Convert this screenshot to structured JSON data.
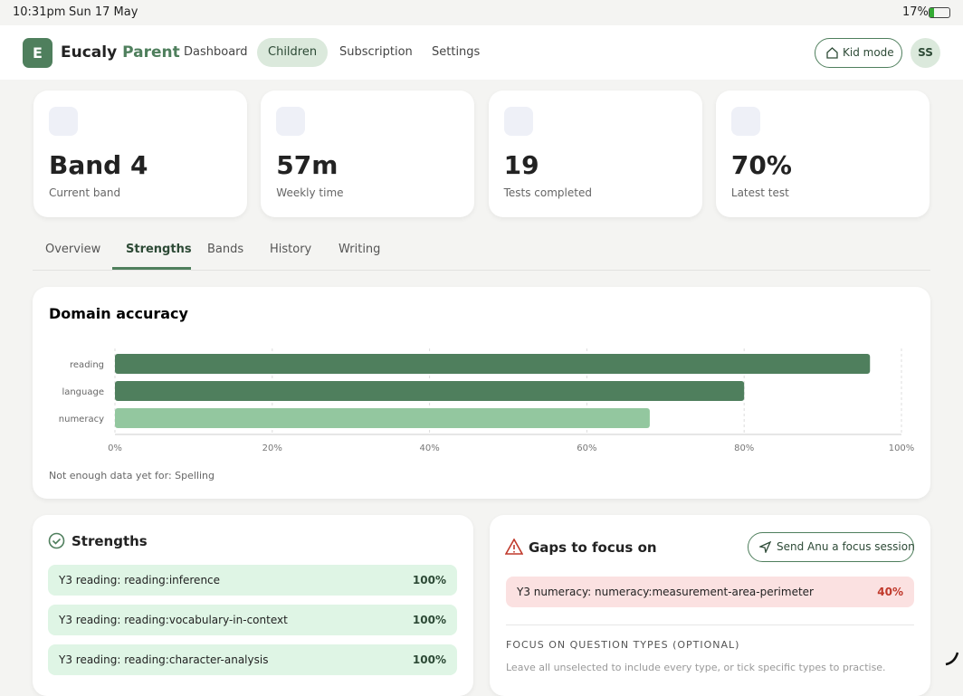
{
  "status_bar": {
    "time": "10:31pm",
    "date": "Sun 17 May",
    "battery": "17%"
  },
  "nav": {
    "logo_letter": "E",
    "brand_first": "Eucaly",
    "brand_second": "Parent",
    "items": [
      "Dashboard",
      "Children",
      "Subscription",
      "Settings"
    ],
    "active": "Children",
    "kid_mode": "Kid mode",
    "avatar": "SS"
  },
  "stats": [
    {
      "value": "Band 4",
      "label": "Current band"
    },
    {
      "value": "57m",
      "label": "Weekly time"
    },
    {
      "value": "19",
      "label": "Tests completed"
    },
    {
      "value": "70%",
      "label": "Latest test"
    }
  ],
  "tabs": [
    "Overview",
    "Strengths",
    "Bands",
    "History",
    "Writing"
  ],
  "active_tab": "Strengths",
  "chart_data": {
    "type": "hbar",
    "title": "Domain accuracy",
    "categories": [
      "reading",
      "language",
      "numeracy"
    ],
    "series": [
      {
        "name": "accuracy",
        "values": [
          96,
          80,
          68
        ],
        "colors": [
          "#4f7f5d",
          "#4f7f5d",
          "#93c79f"
        ]
      }
    ],
    "xlim": [
      0,
      100
    ],
    "xticks": [
      {
        "value": 0,
        "label": "0%"
      },
      {
        "value": 20,
        "label": "20%"
      },
      {
        "value": 40,
        "label": "40%"
      },
      {
        "value": 60,
        "label": "60%"
      },
      {
        "value": 80,
        "label": "80%"
      },
      {
        "value": 100,
        "label": "100%"
      }
    ],
    "grid": true,
    "note": "Not enough data yet for: Spelling"
  },
  "strengths": {
    "title": "Strengths",
    "rows": [
      {
        "label": "Y3 reading: reading:inference",
        "value": "100%"
      },
      {
        "label": "Y3 reading: reading:vocabulary-in-context",
        "value": "100%"
      },
      {
        "label": "Y3 reading: reading:character-analysis",
        "value": "100%"
      }
    ]
  },
  "gaps": {
    "title": "Gaps to focus on",
    "button": "Send Anu a focus session",
    "rows": [
      {
        "label": "Y3 numeracy: numeracy:measurement-area-perimeter",
        "value": "40%"
      }
    ],
    "section_label": "FOCUS ON QUESTION TYPES (OPTIONAL)",
    "hint": "Leave all unselected to include every type, or tick specific types to practise."
  }
}
